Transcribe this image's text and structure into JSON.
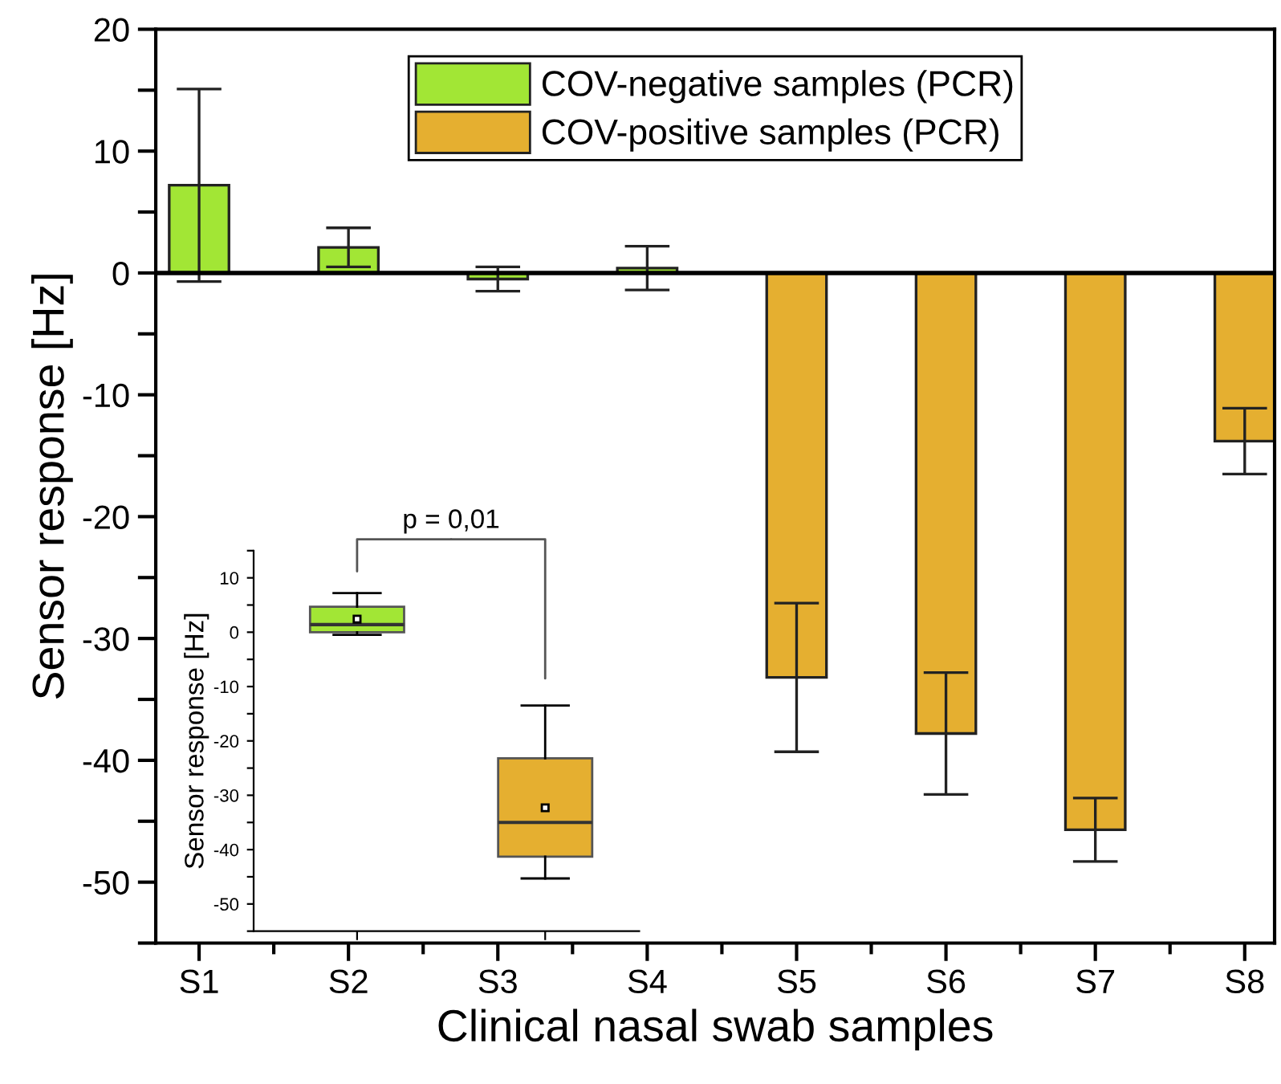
{
  "chart_data": [
    {
      "type": "bar",
      "xlabel": "Clinical nasal swab samples",
      "ylabel": "Sensor response [Hz]",
      "categories": [
        "S1",
        "S2",
        "S3",
        "S4",
        "S5",
        "S6",
        "S7",
        "S8"
      ],
      "series": [
        {
          "name": "COV-negative samples (PCR)",
          "color": "#a2e635",
          "values": [
            7.2,
            2.1,
            -0.5,
            0.4,
            null,
            null,
            null,
            null
          ],
          "errors": [
            7.9,
            1.6,
            1.0,
            1.8,
            null,
            null,
            null,
            null
          ]
        },
        {
          "name": "COV-positive samples (PCR)",
          "color": "#e5af30",
          "values": [
            null,
            null,
            null,
            null,
            -33.2,
            -37.8,
            -45.7,
            -13.8
          ],
          "errors": [
            null,
            null,
            null,
            null,
            6.1,
            5.0,
            2.6,
            2.7
          ]
        }
      ],
      "ylim": [
        -55,
        20
      ],
      "yticks": [
        {
          "value": -55,
          "label": null
        },
        -50,
        {
          "value": -45,
          "label": null
        },
        -40,
        {
          "value": -35,
          "label": null
        },
        -30,
        {
          "value": -25,
          "label": null
        },
        -20,
        {
          "value": -15,
          "label": null
        },
        -10,
        {
          "value": -5,
          "label": null
        },
        0,
        {
          "value": 5,
          "label": null
        },
        10,
        {
          "value": 15,
          "label": null
        },
        20
      ],
      "ref_lines": [
        {
          "axis": "y",
          "value": 0,
          "color": "#000000"
        }
      ],
      "legend": "top",
      "grid": false
    },
    {
      "type": "box",
      "ylabel": "Sensor response [Hz]",
      "categories": [
        null,
        null
      ],
      "colors": [
        "#a2e635",
        "#e5af30"
      ],
      "boxes": [
        {
          "low": -0.5,
          "q1": 0,
          "median": 1.4,
          "q3": 4.7,
          "high": 7.2,
          "mean": 2.4
        },
        {
          "low": -45.3,
          "q1": -41.3,
          "median": -35.0,
          "q3": -23.2,
          "high": -13.5,
          "mean": -32.3
        }
      ],
      "ylim": [
        -55,
        15
      ],
      "yticks": [
        {
          "value": -55,
          "label": null
        },
        -50,
        {
          "value": -45,
          "label": null
        },
        -40,
        {
          "value": -35,
          "label": null
        },
        -30,
        {
          "value": -25,
          "label": null
        },
        -20,
        {
          "value": -15,
          "label": null
        },
        -10,
        {
          "value": -5,
          "label": null
        },
        0,
        {
          "value": 5,
          "label": null
        },
        10,
        {
          "value": 15,
          "label": null
        }
      ],
      "tick_labels": "y",
      "annotations": [
        "p = 0,01"
      ],
      "grid": false
    }
  ]
}
